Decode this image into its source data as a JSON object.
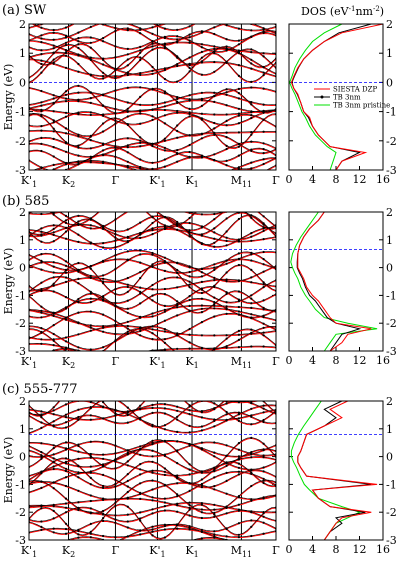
{
  "figure": {
    "dos_header": "DOS (eV",
    "dos_header_exp1": "-1",
    "dos_header_mid": "nm",
    "dos_header_exp2": "-2",
    "dos_header_end": ")",
    "colors": {
      "siesta": "#ff0000",
      "tb3nm": "#000000",
      "pristine": "#00e000",
      "fermi": "#0000ff"
    }
  },
  "chart_data": [
    {
      "type": "line",
      "title": "(a) SW",
      "ylabel": "Energy (eV)",
      "ylim": [
        -3,
        2
      ],
      "yticks": [
        "-3",
        "-2",
        "-1",
        "0",
        "1",
        "2"
      ],
      "kpoints": [
        "K'1",
        "K2",
        "Γ",
        "K'1",
        "K1",
        "M11",
        "Γ"
      ],
      "kpoints_pos": [
        0,
        0.16,
        0.35,
        0.52,
        0.66,
        0.86,
        1
      ],
      "fermi_level": 0.0,
      "series": [
        {
          "name": "SIESTA DZP",
          "style": "solid"
        },
        {
          "name": "TB 3nm",
          "style": "line+points"
        },
        {
          "name": "TB 3nm pristine",
          "style": "solid"
        }
      ],
      "dos": {
        "xlim": [
          0,
          16
        ],
        "xticks": [
          "0",
          "4",
          "8",
          "12",
          "16"
        ],
        "energy": [
          -3,
          -2.7,
          -2.4,
          -2.2,
          -2,
          -1.8,
          -1.5,
          -1.2,
          -1,
          -0.7,
          -0.4,
          -0.2,
          0,
          0.2,
          0.5,
          0.8,
          1.1,
          1.4,
          1.7,
          2
        ],
        "siesta": [
          8,
          9,
          13,
          7,
          6,
          5,
          4,
          3.5,
          2.5,
          2,
          1.5,
          0.8,
          0.4,
          0.8,
          1.5,
          2.5,
          4,
          6,
          9,
          16
        ],
        "tb": [
          8,
          9,
          12,
          7,
          6,
          5,
          4,
          3.3,
          2.5,
          2,
          1.4,
          0.8,
          0.5,
          0.9,
          1.6,
          2.5,
          4,
          6,
          8.5,
          14
        ],
        "pristine": [
          7,
          7.5,
          8,
          6.5,
          5.5,
          4.5,
          3.5,
          2.8,
          2.2,
          1.6,
          1,
          0.5,
          0.1,
          0.5,
          1,
          1.8,
          2.8,
          4,
          6,
          9
        ]
      }
    },
    {
      "type": "line",
      "title": "(b) 585",
      "ylabel": "Energy (eV)",
      "ylim": [
        -3,
        2
      ],
      "yticks": [
        "-3",
        "-2",
        "-1",
        "0",
        "1",
        "2"
      ],
      "kpoints": [
        "K'1",
        "K2",
        "Γ",
        "K'1",
        "K1",
        "M11",
        "Γ"
      ],
      "kpoints_pos": [
        0,
        0.16,
        0.35,
        0.52,
        0.66,
        0.86,
        1
      ],
      "fermi_level": 0.65,
      "dos": {
        "xlim": [
          0,
          16
        ],
        "xticks": [
          "0",
          "4",
          "8",
          "12",
          "16"
        ],
        "energy": [
          -3,
          -2.7,
          -2.4,
          -2.2,
          -2,
          -1.8,
          -1.5,
          -1.2,
          -1,
          -0.7,
          -0.4,
          -0.2,
          0,
          0.2,
          0.5,
          0.8,
          1.1,
          1.4,
          1.7,
          2
        ],
        "siesta": [
          7,
          9,
          10,
          14,
          8,
          7,
          6,
          5,
          4,
          3,
          2.5,
          2,
          1.5,
          1.5,
          1.5,
          1.8,
          2.5,
          3.5,
          5,
          6
        ],
        "tb": [
          7,
          8,
          9,
          12,
          8,
          6.5,
          5.5,
          4.5,
          3.5,
          2.8,
          2.3,
          1.8,
          1.4,
          1.4,
          1.5,
          1.8,
          2.5,
          3.5,
          5,
          6
        ],
        "pristine": [
          6,
          7,
          8,
          15,
          10,
          6,
          4.5,
          3.5,
          2.8,
          2,
          1.5,
          1,
          0.6,
          0.3,
          0.6,
          1.2,
          2,
          3,
          4,
          5
        ]
      }
    },
    {
      "type": "line",
      "title": "(c) 555-777",
      "ylabel": "Energy (eV)",
      "ylim": [
        -3,
        2
      ],
      "yticks": [
        "-3",
        "-2",
        "-1",
        "0",
        "1",
        "2"
      ],
      "kpoints": [
        "K'1",
        "K2",
        "Γ",
        "K'1",
        "K1",
        "M11",
        "Γ"
      ],
      "kpoints_pos": [
        0,
        0.16,
        0.35,
        0.52,
        0.66,
        0.86,
        1
      ],
      "fermi_level": 0.8,
      "dos": {
        "xlim": [
          0,
          16
        ],
        "xticks": [
          "0",
          "4",
          "8",
          "12",
          "16"
        ],
        "energy": [
          -3,
          -2.7,
          -2.4,
          -2.2,
          -2,
          -1.8,
          -1.5,
          -1.2,
          -1,
          -0.7,
          -0.4,
          -0.2,
          0,
          0.2,
          0.5,
          0.8,
          1.1,
          1.4,
          1.7,
          2
        ],
        "siesta": [
          6,
          7,
          8,
          9,
          14,
          7,
          5,
          4,
          15,
          3,
          2,
          1.5,
          1.5,
          2,
          2.5,
          3,
          6,
          9,
          7,
          10
        ],
        "tb": [
          6,
          7,
          9,
          8,
          13,
          7,
          5,
          4,
          14,
          3,
          2,
          1.5,
          1.5,
          2,
          2.5,
          3,
          6,
          8,
          6,
          9
        ],
        "pristine": [
          6,
          7,
          8,
          10,
          12,
          9,
          5,
          3.5,
          2.6,
          1.9,
          1.3,
          0.8,
          0.4,
          0.4,
          0.9,
          1.6,
          2.5,
          3.5,
          4.5,
          5.5
        ]
      }
    }
  ]
}
